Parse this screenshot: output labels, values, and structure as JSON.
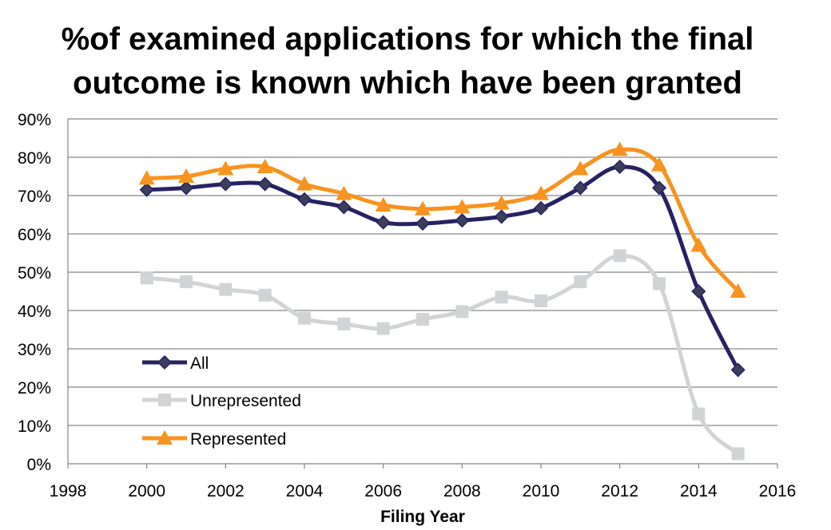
{
  "chart_data": {
    "type": "line",
    "title_lines": [
      "%of examined applications for which the final",
      "outcome is known which have been granted"
    ],
    "xlabel": "Filing Year",
    "ylabel": "",
    "xlim": [
      1998,
      2016
    ],
    "ylim": [
      0,
      90
    ],
    "x_ticks": [
      1998,
      2000,
      2002,
      2004,
      2006,
      2008,
      2010,
      2012,
      2014,
      2016
    ],
    "x_tick_labels": [
      "1998",
      "2000",
      "2002",
      "2004",
      "2006",
      "2008",
      "2010",
      "2012",
      "2014",
      "2016"
    ],
    "y_ticks": [
      0,
      10,
      20,
      30,
      40,
      50,
      60,
      70,
      80,
      90
    ],
    "y_tick_labels": [
      "0%",
      "10%",
      "20%",
      "30%",
      "40%",
      "50%",
      "60%",
      "70%",
      "80%",
      "90%"
    ],
    "grid": "horizontal",
    "legend_position": "bottom-left",
    "x": [
      2000,
      2001,
      2002,
      2003,
      2004,
      2005,
      2006,
      2007,
      2008,
      2009,
      2010,
      2011,
      2012,
      2013,
      2014,
      2015
    ],
    "series": [
      {
        "name": "All",
        "color": "#262262",
        "marker": "diamond",
        "values": [
          71.5,
          72,
          73,
          73,
          69,
          67,
          63,
          62.7,
          63.5,
          64.5,
          66.7,
          72,
          77.5,
          72,
          45,
          24.5
        ]
      },
      {
        "name": "Unrepresented",
        "color": "#D1D3D4",
        "marker": "square",
        "values": [
          48.5,
          47.5,
          45.5,
          44,
          38,
          36.5,
          35.3,
          37.7,
          39.7,
          43.5,
          42.5,
          47.5,
          54.3,
          47,
          13,
          2.6
        ]
      },
      {
        "name": "Represented",
        "color": "#F7931E",
        "marker": "triangle",
        "values": [
          74.5,
          75,
          77,
          77.5,
          73,
          70.5,
          67.5,
          66.5,
          67,
          68,
          70.5,
          77,
          82,
          78,
          57,
          45
        ]
      }
    ]
  }
}
